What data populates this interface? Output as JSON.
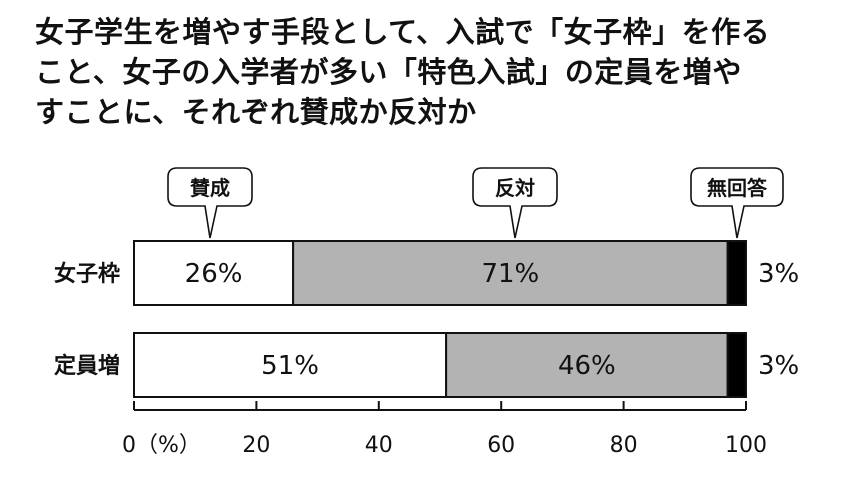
{
  "title": {
    "line1": "女子学生を増やす手段として、入試で「女子枠」を作る",
    "line2": "こと、女子の入学者が多い「特色入試」の定員を増や",
    "line3": "すことに、それぞれ賛成か反対か"
  },
  "chart_data": {
    "type": "bar",
    "orientation": "horizontal",
    "stacked": true,
    "categories": [
      "女子枠",
      "定員増"
    ],
    "series": [
      {
        "name": "賛成",
        "values": [
          26,
          51
        ],
        "color": "#ffffff"
      },
      {
        "name": "反対",
        "values": [
          71,
          46
        ],
        "color": "#b3b3b3"
      },
      {
        "name": "無回答",
        "values": [
          3,
          3
        ],
        "color": "#000000"
      }
    ],
    "data_labels": [
      [
        "26%",
        "71%",
        "3%"
      ],
      [
        "51%",
        "46%",
        "3%"
      ]
    ],
    "xlim": [
      0,
      100
    ],
    "xticks": [
      0,
      20,
      40,
      60,
      80,
      100
    ],
    "xtick_labels": [
      "0（%）",
      "20",
      "40",
      "60",
      "80",
      "100"
    ],
    "legend": "callout bubbles above bars",
    "grid": false
  }
}
